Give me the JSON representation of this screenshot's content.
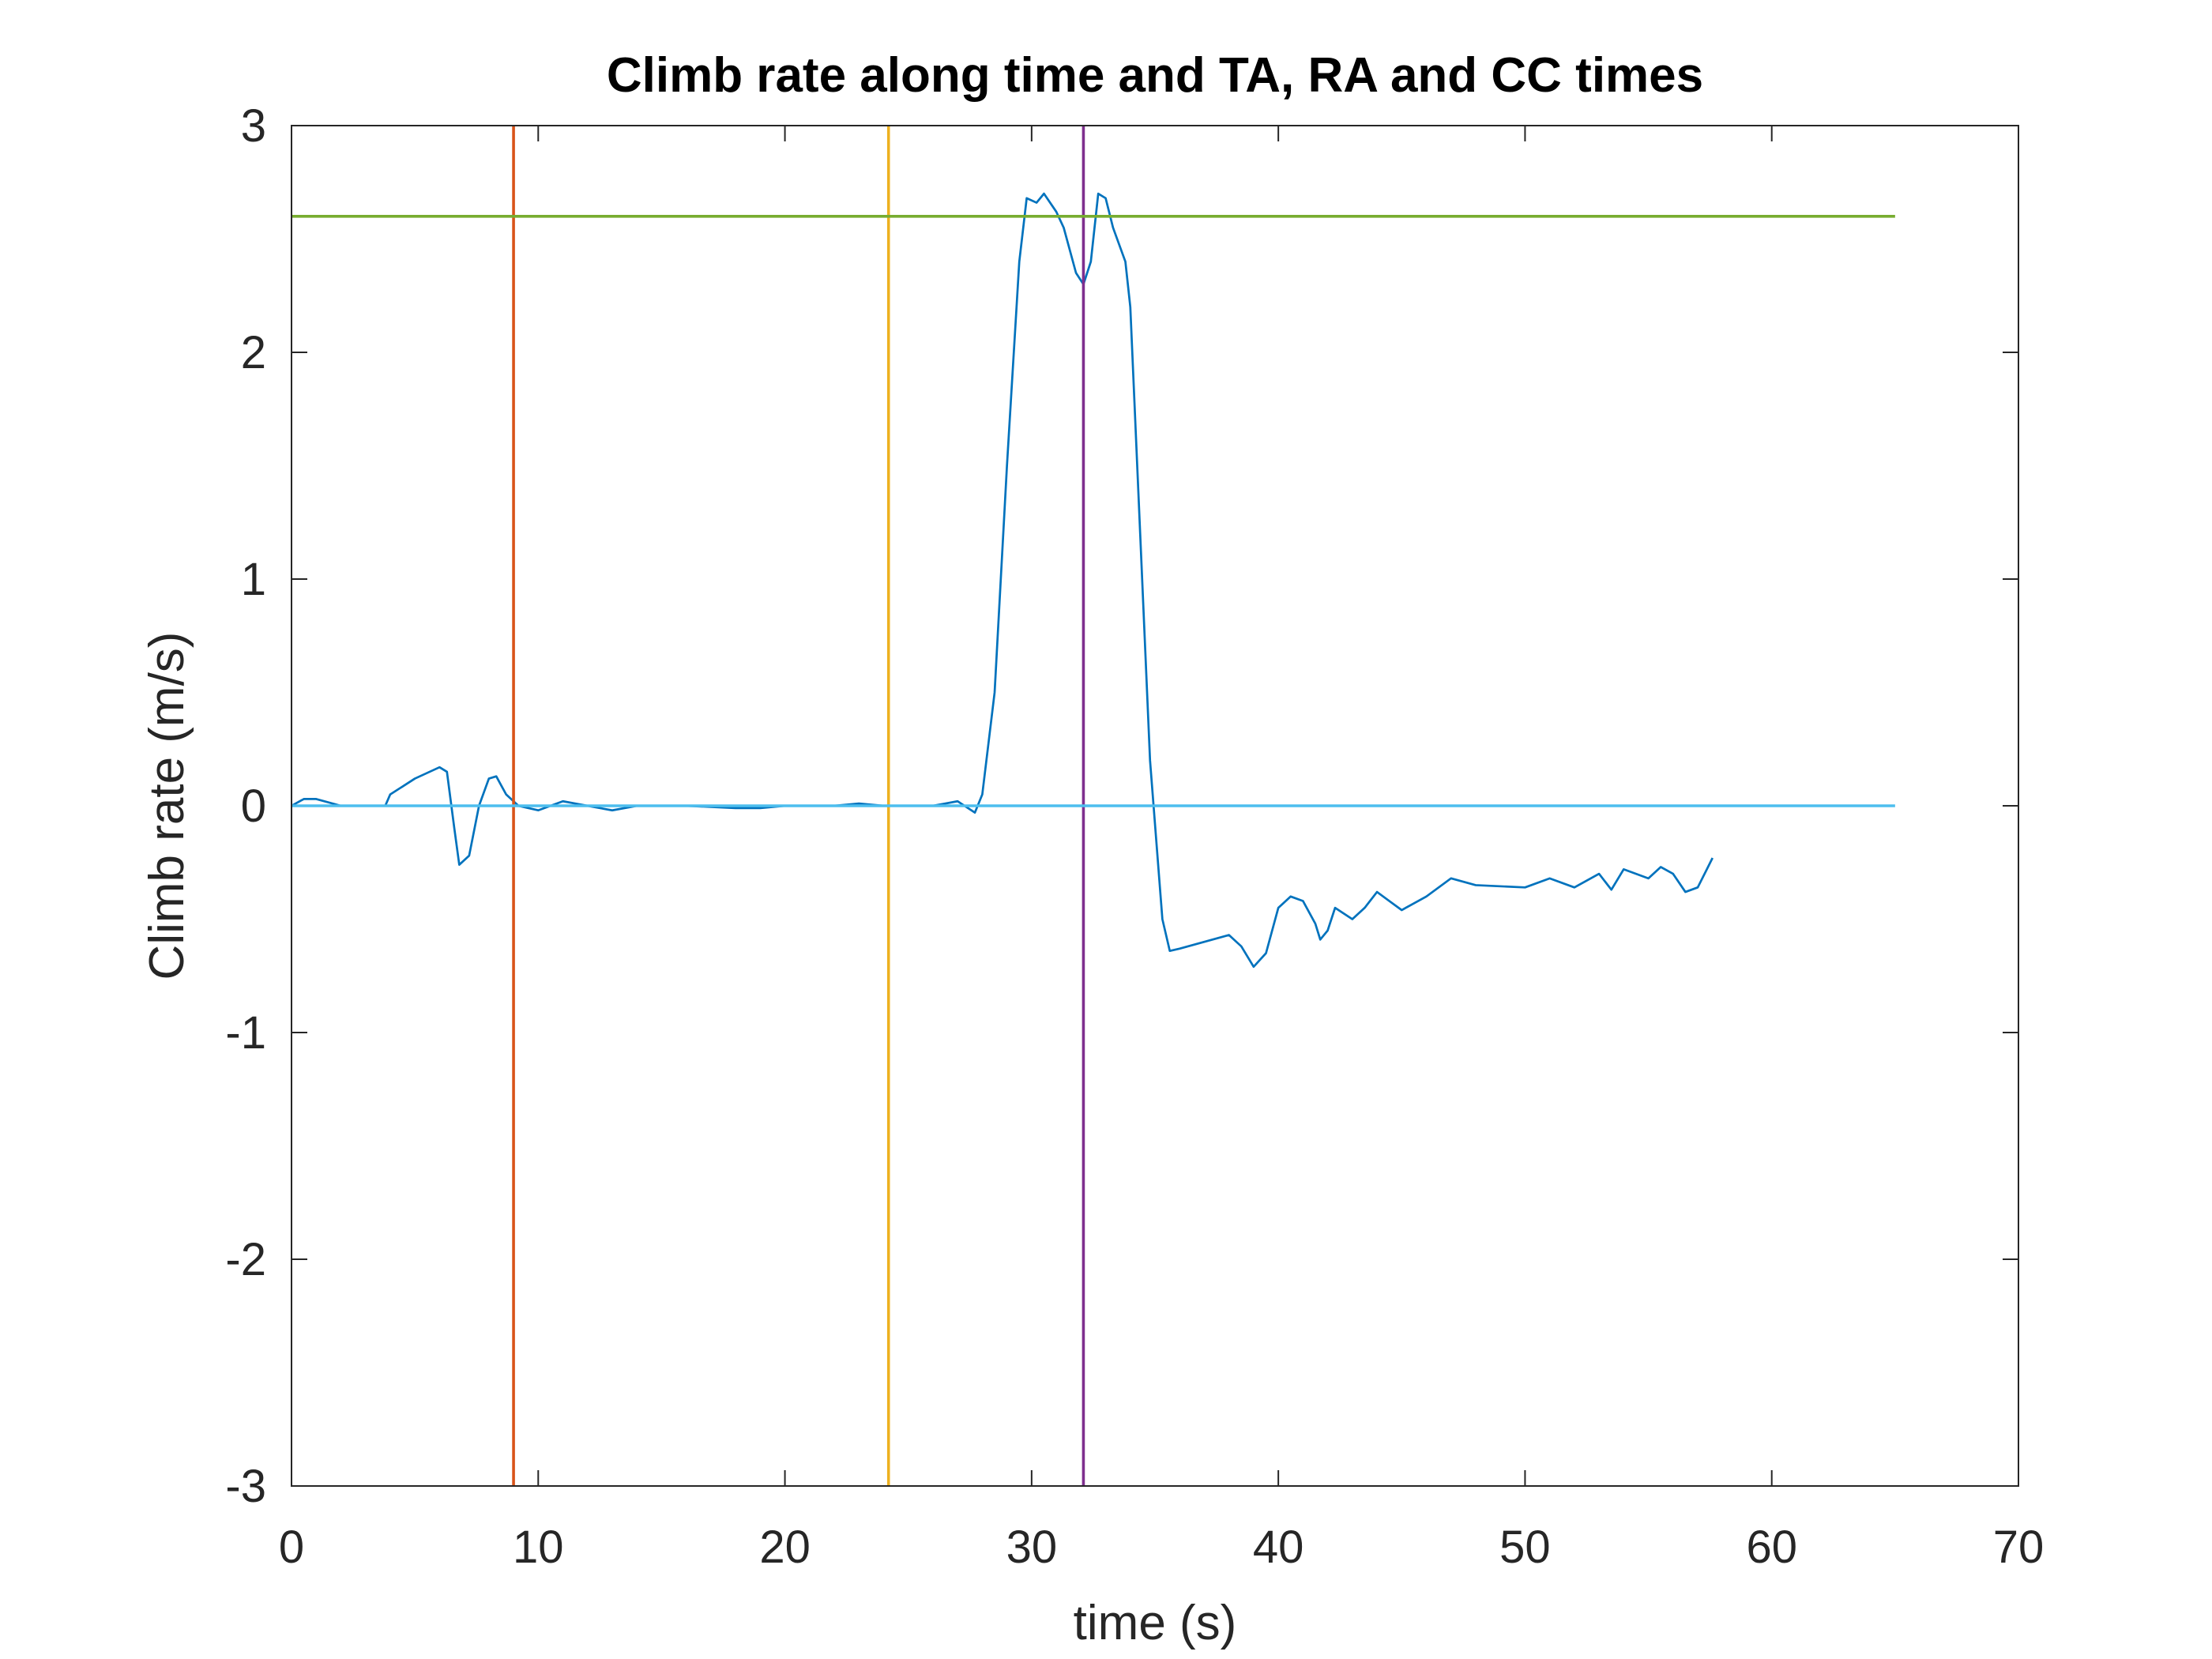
{
  "chart_data": {
    "type": "line",
    "title": "Climb rate along time and TA, RA and CC times",
    "x_label": "time (s)",
    "y_label": "Climb rate (m/s)",
    "xlim": [
      0,
      70
    ],
    "xticks": [
      0,
      10,
      20,
      30,
      40,
      50,
      60,
      70
    ],
    "ylim": [
      -3,
      3
    ],
    "yticks": [
      -3,
      -2,
      -1,
      0,
      1,
      2,
      3
    ],
    "grid": false,
    "series": [
      {
        "color": "#0072BD",
        "x": [
          0,
          0.5,
          1,
          2,
          3,
          3.8,
          4,
          5,
          6,
          6.3,
          6.6,
          6.8,
          7.2,
          7.6,
          8,
          8.3,
          8.7,
          9.2,
          10,
          11,
          12,
          13,
          14,
          16,
          18,
          19,
          20,
          22,
          23,
          24,
          25,
          26,
          27,
          27.7,
          28,
          28.5,
          29,
          29.5,
          29.8,
          30.2,
          30.5,
          31,
          31.3,
          31.8,
          32.1,
          32.4,
          32.7,
          33,
          33.3,
          33.8,
          34,
          34.4,
          34.8,
          35.3,
          35.6,
          36,
          37,
          38,
          38.5,
          39,
          39.5,
          40,
          40.5,
          41,
          41.5,
          41.7,
          42,
          42.3,
          43,
          43.5,
          44,
          44.5,
          45,
          46,
          47,
          48,
          50,
          51,
          52,
          53,
          53.5,
          54,
          55,
          55.5,
          56,
          56.5,
          57,
          57.6
        ],
        "values": [
          0,
          0.03,
          0.03,
          0,
          0,
          0,
          0.05,
          0.12,
          0.17,
          0.15,
          -0.1,
          -0.26,
          -0.22,
          0,
          0.12,
          0.13,
          0.05,
          0,
          -0.02,
          0.02,
          0,
          -0.02,
          0,
          0,
          -0.01,
          -0.01,
          0,
          0,
          0.01,
          0,
          0,
          0,
          0.02,
          -0.03,
          0.05,
          0.5,
          1.5,
          2.4,
          2.68,
          2.66,
          2.7,
          2.62,
          2.55,
          2.35,
          2.3,
          2.4,
          2.7,
          2.68,
          2.55,
          2.4,
          2.2,
          1.2,
          0.2,
          -0.5,
          -0.64,
          -0.63,
          -0.6,
          -0.57,
          -0.62,
          -0.71,
          -0.65,
          -0.45,
          -0.4,
          -0.42,
          -0.52,
          -0.59,
          -0.55,
          -0.45,
          -0.5,
          -0.45,
          -0.38,
          -0.42,
          -0.46,
          -0.4,
          -0.32,
          -0.35,
          -0.36,
          -0.32,
          -0.36,
          -0.3,
          -0.37,
          -0.28,
          -0.32,
          -0.27,
          -0.3,
          -0.38,
          -0.36,
          -0.23
        ]
      },
      {
        "color": "#D95319",
        "x": [
          9,
          9
        ],
        "values": [
          -3,
          3
        ]
      },
      {
        "color": "#EDB120",
        "x": [
          24.2,
          24.2
        ],
        "values": [
          -3,
          3
        ]
      },
      {
        "color": "#7E2F8E",
        "x": [
          32.1,
          32.1
        ],
        "values": [
          -3,
          3
        ]
      },
      {
        "color": "#77AC30",
        "x": [
          0,
          65
        ],
        "values": [
          2.6,
          2.6
        ]
      },
      {
        "color": "#4DBEEE",
        "x": [
          0,
          65
        ],
        "values": [
          0,
          0
        ]
      }
    ]
  }
}
